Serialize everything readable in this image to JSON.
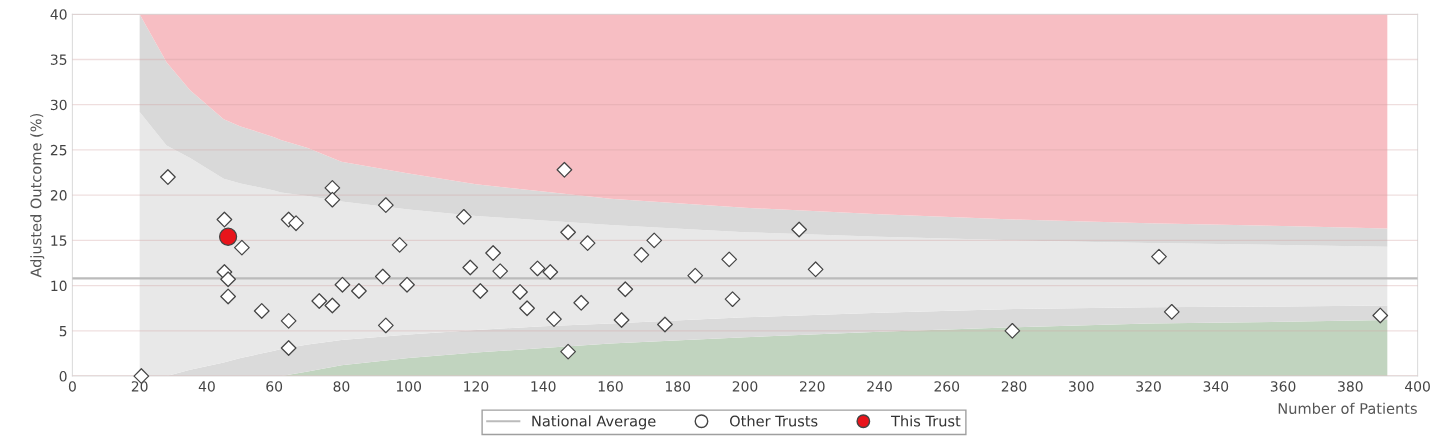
{
  "chart_data": {
    "type": "scatter",
    "xlabel": "Number of Patients",
    "ylabel": "Adjusted Outcome (%)",
    "xlim": [
      0,
      400
    ],
    "xticks": [
      0,
      20,
      40,
      60,
      80,
      100,
      120,
      140,
      160,
      180,
      200,
      220,
      240,
      260,
      280,
      300,
      320,
      340,
      360,
      380,
      400
    ],
    "ylim": [
      0,
      40
    ],
    "yticks": [
      0,
      5,
      10,
      15,
      20,
      25,
      30,
      35,
      40
    ],
    "grid": "y",
    "legend": "bottom",
    "stacked": true,
    "ref_lines": [
      {
        "axis": "y",
        "value": 10.8,
        "label": "National Average",
        "color": "#bbbbbb",
        "line_style": "solid"
      }
    ],
    "series": [
      {
        "type": "area",
        "color": "#c1d4bf",
        "x": [
          20,
          28,
          35,
          45,
          50,
          60,
          62,
          70,
          80,
          100,
          120,
          140,
          160,
          200,
          240,
          280,
          320,
          360,
          391
        ],
        "values": [
          0,
          0,
          0,
          0,
          0,
          0,
          0,
          0.5,
          1.2,
          2.0,
          2.6,
          3.1,
          3.6,
          4.3,
          4.9,
          5.4,
          5.8,
          6.0,
          6.2
        ]
      },
      {
        "type": "area",
        "color": "#dadada",
        "x": [
          20,
          28,
          35,
          45,
          50,
          60,
          62,
          70,
          80,
          100,
          120,
          140,
          160,
          200,
          240,
          280,
          320,
          360,
          391
        ],
        "values": [
          0,
          0,
          0.7,
          1.5,
          2.0,
          2.8,
          3.0,
          3.0,
          2.8,
          2.6,
          2.5,
          2.4,
          2.2,
          2.2,
          2.1,
          2.0,
          1.8,
          1.7,
          1.6
        ]
      },
      {
        "type": "area",
        "color": "#e8e8e8",
        "x": [
          20,
          28,
          35,
          45,
          50,
          60,
          62,
          70,
          80,
          100,
          120,
          140,
          160,
          200,
          240,
          280,
          320,
          360,
          391
        ],
        "values": [
          29.2,
          25.5,
          23.4,
          20.3,
          19.3,
          17.7,
          17.3,
          16.4,
          15.3,
          13.8,
          12.6,
          11.7,
          10.9,
          9.4,
          8.4,
          7.6,
          7.1,
          6.8,
          6.5
        ]
      },
      {
        "type": "area",
        "color": "#d9d9d9",
        "x": [
          20,
          28,
          35,
          45,
          50,
          60,
          62,
          70,
          80,
          100,
          120,
          140,
          160,
          200,
          240,
          280,
          320,
          360,
          391
        ],
        "values": [
          10.8,
          9.2,
          7.5,
          6.6,
          6.3,
          5.9,
          5.8,
          5.3,
          4.4,
          4.0,
          3.5,
          3.2,
          2.9,
          2.7,
          2.5,
          2.3,
          2.2,
          2.1,
          2.0
        ]
      },
      {
        "type": "area",
        "color": "#f7bec3",
        "x": [
          20,
          28,
          35,
          45,
          50,
          60,
          62,
          70,
          80,
          100,
          120,
          140,
          160,
          200,
          240,
          280,
          320,
          360,
          391
        ],
        "values": [
          0,
          5.3,
          8.4,
          11.6,
          12.4,
          13.6,
          13.9,
          14.8,
          16.3,
          17.6,
          18.8,
          19.6,
          20.4,
          21.4,
          22.1,
          22.7,
          23.1,
          23.4,
          23.7
        ]
      },
      {
        "name": "Other Trusts",
        "color": "#ffffff",
        "marker": "diamond",
        "x": [
          20.5,
          28.4,
          45.2,
          50.4,
          45.2,
          46.3,
          46.3,
          56.3,
          64.3,
          66.5,
          64.3,
          64.3,
          77.3,
          77.3,
          73.4,
          77.3,
          80.3,
          85.2,
          93.2,
          92.3,
          93.2,
          97.3,
          99.5,
          116.4,
          146.3,
          118.3,
          125.1,
          127.2,
          121.3,
          133.1,
          135.2,
          138.3,
          142.1,
          143.2,
          147.4,
          147.4,
          153.2,
          151.3,
          164.4,
          163.3,
          169.2,
          173.0,
          176.2,
          185.2,
          195.3,
          196.3,
          216.1,
          221.0,
          323.1,
          326.9,
          279.5,
          388.9
        ],
        "values": [
          0,
          22.0,
          17.3,
          14.2,
          11.5,
          10.7,
          8.8,
          7.2,
          17.3,
          16.9,
          6.1,
          3.1,
          20.8,
          19.5,
          8.3,
          7.8,
          10.1,
          9.4,
          18.9,
          11.0,
          5.6,
          14.5,
          10.1,
          17.6,
          22.8,
          12.0,
          13.6,
          11.6,
          9.4,
          9.3,
          7.5,
          11.9,
          11.5,
          6.3,
          15.9,
          2.7,
          14.7,
          8.1,
          9.6,
          6.2,
          13.4,
          15.0,
          5.7,
          11.1,
          12.9,
          8.5,
          16.2,
          11.8,
          13.2,
          7.1,
          5.0,
          6.7
        ]
      },
      {
        "name": "This Trust",
        "color": "#e8141b",
        "marker": "circle",
        "x": [
          46.3
        ],
        "values": [
          15.4
        ]
      }
    ]
  }
}
